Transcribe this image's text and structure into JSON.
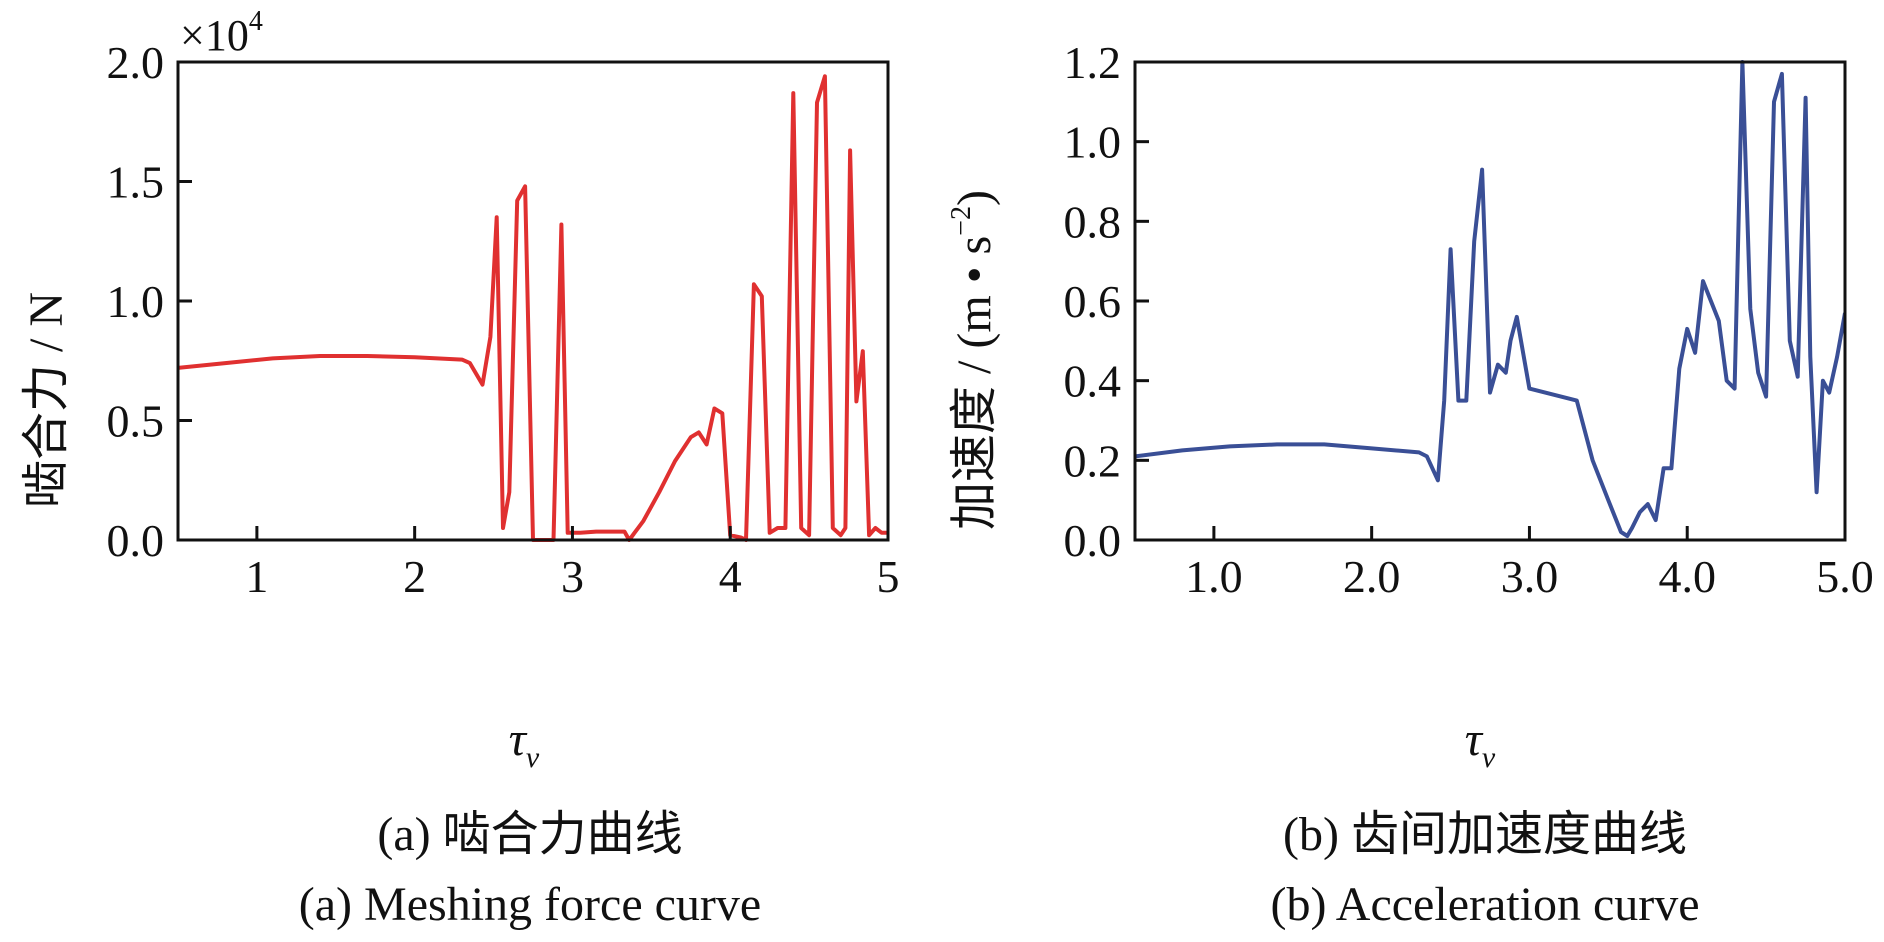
{
  "chart_data": [
    {
      "type": "line",
      "xlabel": "τ",
      "xlabel_sub": "v",
      "ylabel": "啮合力 / N",
      "y_multiplier": "×10",
      "y_multiplier_exp": "4",
      "xlim": [
        0.5,
        5
      ],
      "ylim": [
        0,
        2.0
      ],
      "x_ticks": [
        1,
        2,
        3,
        4,
        5
      ],
      "x_tick_labels": [
        "1",
        "2",
        "3",
        "4",
        "5"
      ],
      "y_ticks": [
        0,
        0.5,
        1.0,
        1.5,
        2.0
      ],
      "y_tick_labels": [
        "0.0",
        "0.5",
        "1.0",
        "1.5",
        "2.0"
      ],
      "caption_cn": "(a) 啮合力曲线",
      "caption_en": "(a) Meshing force curve",
      "color": "#e03030",
      "series": [
        {
          "x": [
            0.5,
            0.8,
            1.1,
            1.4,
            1.7,
            2.0,
            2.3,
            2.35,
            2.43,
            2.48,
            2.52,
            2.56,
            2.6,
            2.65,
            2.7,
            2.75,
            2.8,
            2.88,
            2.93,
            2.97,
            3.05,
            3.15,
            3.25,
            3.33,
            3.36,
            3.45,
            3.55,
            3.65,
            3.75,
            3.8,
            3.85,
            3.9,
            3.95,
            4.0,
            4.07,
            4.1,
            4.15,
            4.2,
            4.25,
            4.3,
            4.35,
            4.4,
            4.45,
            4.5,
            4.55,
            4.6,
            4.65,
            4.7,
            4.73,
            4.76,
            4.8,
            4.84,
            4.88,
            4.92,
            4.96,
            5.0
          ],
          "y": [
            0.72,
            0.74,
            0.76,
            0.77,
            0.77,
            0.765,
            0.755,
            0.74,
            0.65,
            0.85,
            1.35,
            0.05,
            0.2,
            1.42,
            1.48,
            0.0,
            0.0,
            0.0,
            1.32,
            0.03,
            0.03,
            0.035,
            0.035,
            0.035,
            0.0,
            0.08,
            0.2,
            0.33,
            0.43,
            0.45,
            0.4,
            0.55,
            0.53,
            0.02,
            0.01,
            0.0,
            1.07,
            1.02,
            0.03,
            0.05,
            0.05,
            1.87,
            0.05,
            0.02,
            1.83,
            1.94,
            0.05,
            0.02,
            0.05,
            1.63,
            0.58,
            0.79,
            0.02,
            0.05,
            0.03,
            0.03
          ]
        }
      ]
    },
    {
      "type": "line",
      "xlabel": "τ",
      "xlabel_sub": "v",
      "ylabel_main": "加速度 / (m • s",
      "ylabel_exp": "−2",
      "ylabel_close": ")",
      "xlim": [
        0.5,
        5.0
      ],
      "ylim": [
        0,
        1.2
      ],
      "x_ticks": [
        1.0,
        2.0,
        3.0,
        4.0,
        5.0
      ],
      "x_tick_labels": [
        "1.0",
        "2.0",
        "3.0",
        "4.0",
        "5.0"
      ],
      "y_ticks": [
        0,
        0.2,
        0.4,
        0.6,
        0.8,
        1.0,
        1.2
      ],
      "y_tick_labels": [
        "0.0",
        "0.2",
        "0.4",
        "0.6",
        "0.8",
        "1.0",
        "1.2"
      ],
      "caption_cn": "(b) 齿间加速度曲线",
      "caption_en": "(b) Acceleration curve",
      "color": "#3a4f96",
      "series": [
        {
          "x": [
            0.5,
            0.8,
            1.1,
            1.4,
            1.7,
            2.0,
            2.3,
            2.35,
            2.42,
            2.46,
            2.5,
            2.55,
            2.6,
            2.65,
            2.7,
            2.75,
            2.8,
            2.85,
            2.88,
            2.92,
            3.0,
            3.1,
            3.2,
            3.3,
            3.4,
            3.5,
            3.58,
            3.62,
            3.65,
            3.7,
            3.75,
            3.8,
            3.85,
            3.9,
            3.95,
            4.0,
            4.05,
            4.1,
            4.15,
            4.2,
            4.25,
            4.3,
            4.35,
            4.4,
            4.45,
            4.5,
            4.55,
            4.6,
            4.65,
            4.7,
            4.75,
            4.78,
            4.82,
            4.86,
            4.9,
            4.95,
            5.0
          ],
          "y": [
            0.21,
            0.225,
            0.235,
            0.24,
            0.24,
            0.23,
            0.22,
            0.21,
            0.15,
            0.35,
            0.73,
            0.35,
            0.35,
            0.75,
            0.93,
            0.37,
            0.44,
            0.42,
            0.5,
            0.56,
            0.38,
            0.37,
            0.36,
            0.35,
            0.2,
            0.1,
            0.02,
            0.01,
            0.03,
            0.07,
            0.09,
            0.05,
            0.18,
            0.18,
            0.43,
            0.53,
            0.47,
            0.65,
            0.6,
            0.55,
            0.4,
            0.38,
            1.2,
            0.58,
            0.42,
            0.36,
            1.1,
            1.17,
            0.5,
            0.41,
            1.11,
            0.46,
            0.12,
            0.4,
            0.37,
            0.46,
            0.57
          ]
        }
      ]
    }
  ]
}
